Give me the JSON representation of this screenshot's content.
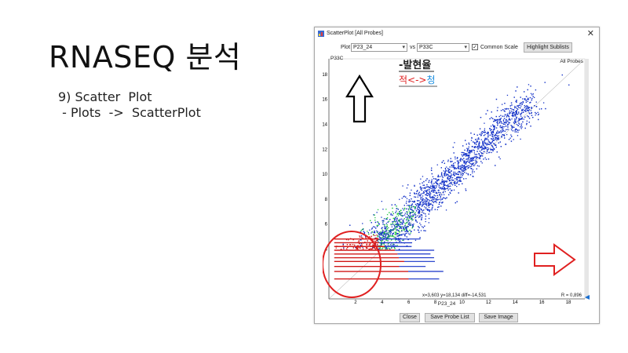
{
  "slide": {
    "title": "RNASEQ 분석",
    "lines": [
      "9) Scatter  Plot",
      " - Plots  ->  ScatterPlot"
    ]
  },
  "window": {
    "title": "ScatterPlot [All Probes]",
    "close_glyph": "✕"
  },
  "toolbar": {
    "plot_label": "Plot",
    "plot_value": "P23_24",
    "vs_label": "vs",
    "vs_value": "P33C",
    "common_scale_label": "Common Scale",
    "common_scale_checked": true,
    "highlight_label": "Highlight Sublists"
  },
  "plot": {
    "y_axis_name": "P33C",
    "x_axis_name": "P23_24",
    "series_label": "All Probes",
    "coord_readout": "x=3,603 y=18,134 diff=-14,531",
    "r_value": "R = 0,896",
    "x_ticks": [
      "2",
      "4",
      "6",
      "8",
      "10",
      "12",
      "14",
      "16",
      "18"
    ],
    "y_ticks": [
      "4",
      "6",
      "8",
      "10",
      "12",
      "14",
      "16",
      "18"
    ],
    "annotation_author": "-발현율",
    "annotation_red": "적",
    "annotation_arrow": "<->",
    "annotation_blue": "청"
  },
  "footer": {
    "close_label": "Close",
    "save_probe_label": "Save Probe List",
    "save_image_label": "Save Image"
  },
  "colors": {
    "low_density": "#1432c8",
    "mid_density": "#22c840",
    "high_density": "#d01818",
    "annotation_red": "#e02020",
    "annotation_blue": "#1a8ee0"
  }
}
